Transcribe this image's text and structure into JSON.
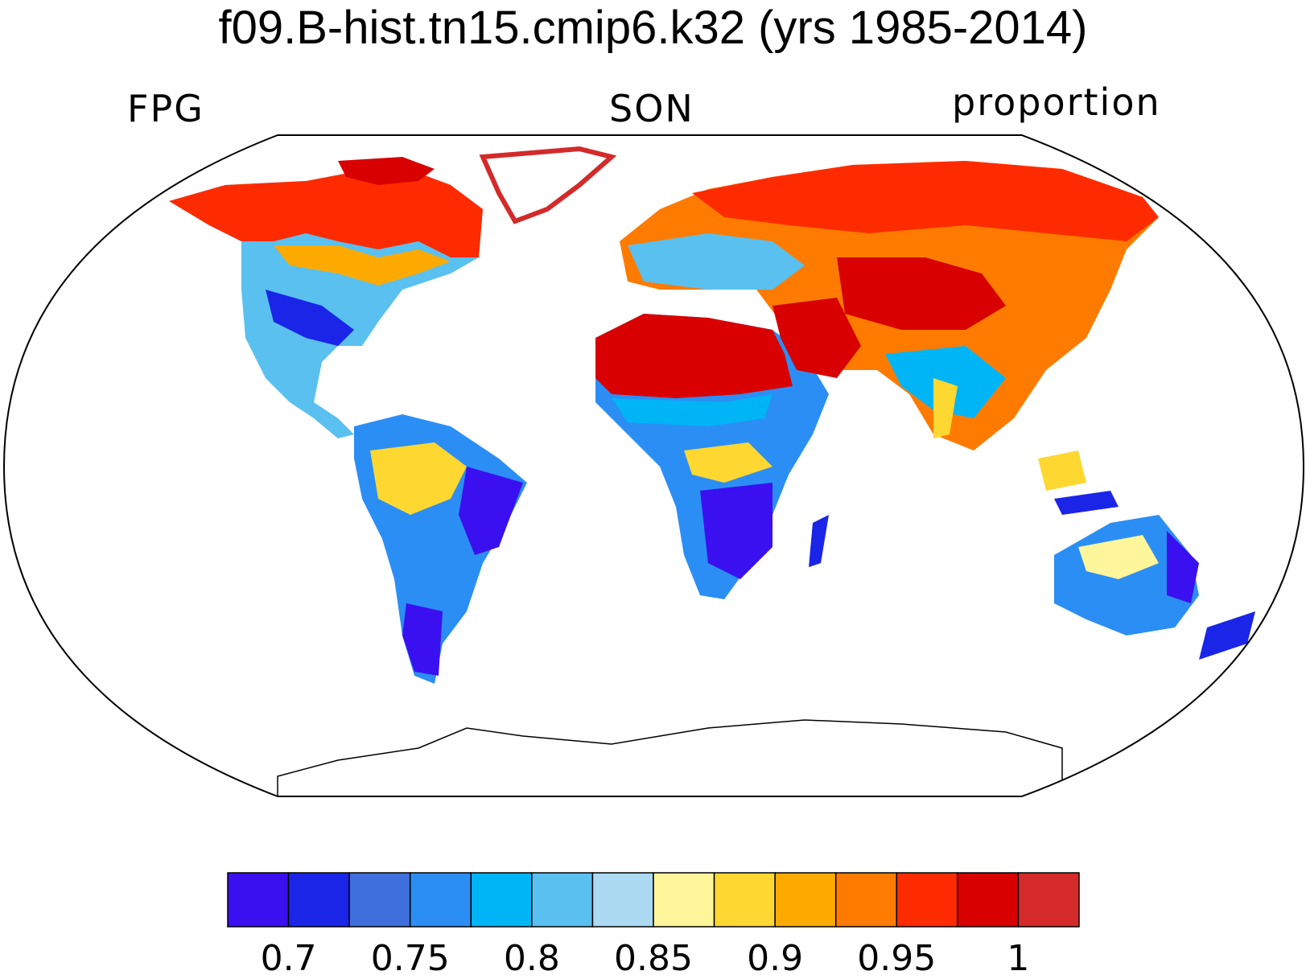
{
  "title": "f09.B-hist.tn15.cmip6.k32 (yrs 1985-2014)",
  "subtitle_left": "FPG",
  "subtitle_center": "SON",
  "subtitle_right": "proportion",
  "colorbar": {
    "colors": [
      "#3a10f0",
      "#1a25e8",
      "#3f6fdc",
      "#2b8ef5",
      "#00b5f5",
      "#59c0ef",
      "#abdaf2",
      "#fff59a",
      "#fed731",
      "#fdaa00",
      "#ff7b00",
      "#ff2b00",
      "#d80000",
      "#d42a2a"
    ],
    "labels": [
      "0.7",
      "0.75",
      "0.8",
      "0.85",
      "0.9",
      "0.95",
      "1"
    ]
  }
}
